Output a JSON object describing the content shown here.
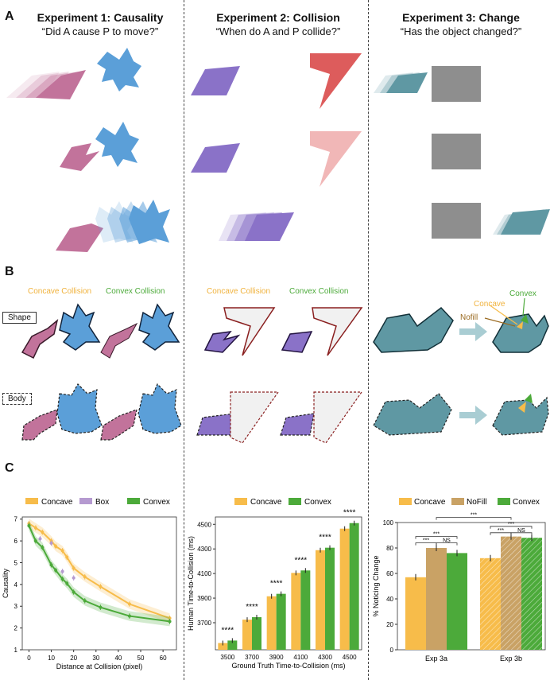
{
  "panels": {
    "a": "A",
    "b": "B",
    "c": "C"
  },
  "experiments": [
    {
      "title": "Experiment 1: Causality",
      "question": "“Did A cause P to move?”"
    },
    {
      "title": "Experiment 2: Collision",
      "question": "“When do A and P collide?”"
    },
    {
      "title": "Experiment 3: Change",
      "question": "“Has the object changed?”"
    }
  ],
  "panel_b": {
    "concave_label": "Concave Collision",
    "convex_label": "Convex Collision",
    "shape_label": "Shape",
    "body_label": "Body",
    "change_labels": {
      "concave": "Concave",
      "convex": "Convex",
      "nofill": "Nofill"
    }
  },
  "colors": {
    "pink": "#c2739b",
    "blue": "#5b9fd8",
    "purple": "#8a72c8",
    "red": "#dd5c5c",
    "teal": "#5f98a3",
    "gray": "#8e8e8e",
    "orange": "#f7bc4a",
    "green": "#4caa3a",
    "lavender": "#b59ad0",
    "tan": "#c9a265"
  },
  "chart_data": [
    {
      "type": "line",
      "legend": [
        "Concave",
        "Box",
        "Convex"
      ],
      "xlabel": "Distance at Collision (pixel)",
      "ylabel": "Causality",
      "xlim": [
        -3,
        66
      ],
      "ylim": [
        1,
        7.1
      ],
      "xticks": [
        "0",
        "10",
        "20",
        "30",
        "40",
        "50",
        "60"
      ],
      "yticks": [
        "1",
        "2",
        "3",
        "4",
        "5",
        "6",
        "7"
      ],
      "series": [
        {
          "name": "Concave",
          "x": [
            0,
            3,
            6,
            10,
            12,
            15,
            17,
            20,
            25,
            32,
            45,
            63
          ],
          "y": [
            6.8,
            6.6,
            6.4,
            6.0,
            5.75,
            5.55,
            5.25,
            4.75,
            4.35,
            3.9,
            3.1,
            2.45
          ]
        },
        {
          "name": "Box",
          "x": [
            0,
            5,
            10,
            15,
            20
          ],
          "y": [
            6.7,
            6.1,
            5.9,
            4.6,
            4.3
          ]
        },
        {
          "name": "Convex",
          "x": [
            0,
            3,
            6,
            10,
            12,
            15,
            17,
            20,
            25,
            32,
            45,
            63
          ],
          "y": [
            6.7,
            6.0,
            5.7,
            4.9,
            4.65,
            4.25,
            4.05,
            3.65,
            3.25,
            2.95,
            2.55,
            2.3
          ]
        }
      ]
    },
    {
      "type": "bar",
      "legend": [
        "Concave",
        "Convex"
      ],
      "categories": [
        "3500",
        "3700",
        "3900",
        "4100",
        "4300",
        "4500"
      ],
      "series": [
        {
          "name": "Concave",
          "values": [
            3535,
            3725,
            3915,
            4105,
            4290,
            4465
          ]
        },
        {
          "name": "Convex",
          "values": [
            3555,
            3745,
            3935,
            4125,
            4310,
            4510
          ]
        }
      ],
      "annotations": [
        "****",
        "****",
        "****",
        "****",
        "****",
        "****"
      ],
      "xlabel": "Ground Truth Time-to-Collision (ms)",
      "ylabel": "Human Time-to-Collision (ms)",
      "ylim": [
        3480,
        4560
      ],
      "yticks": [
        "3700",
        "3900",
        "4100",
        "4300",
        "4500"
      ]
    },
    {
      "type": "bar",
      "legend": [
        "Concave",
        "NoFill",
        "Convex"
      ],
      "categories": [
        "Exp 3a",
        "Exp 3b"
      ],
      "series": [
        {
          "name": "Concave",
          "values": [
            57,
            72
          ]
        },
        {
          "name": "NoFill",
          "values": [
            80,
            89
          ]
        },
        {
          "name": "Convex",
          "values": [
            76,
            88
          ]
        }
      ],
      "significance": [
        "***",
        "***",
        "NS",
        "***",
        "***",
        "NS",
        "***"
      ],
      "ylabel": "% Noticing Change",
      "ylim": [
        0,
        100
      ],
      "yticks": [
        "0",
        "20",
        "40",
        "60",
        "80",
        "100"
      ]
    }
  ]
}
